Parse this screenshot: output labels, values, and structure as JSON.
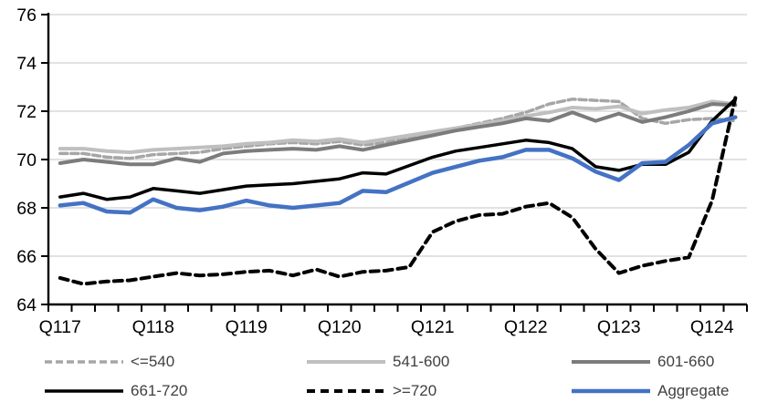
{
  "chart_data": {
    "type": "line",
    "title": "",
    "xlabel": "",
    "ylabel": "",
    "ylim": [
      64,
      76
    ],
    "yticks": [
      64,
      66,
      68,
      70,
      72,
      74,
      76
    ],
    "n_points": 30,
    "x_tick_labels": [
      "Q117",
      "Q118",
      "Q119",
      "Q120",
      "Q121",
      "Q122",
      "Q123",
      "Q124"
    ],
    "x_tick_positions": [
      0,
      4,
      8,
      12,
      16,
      20,
      24,
      28
    ],
    "grid": "horizontal",
    "legend_position": "bottom",
    "series": [
      {
        "name": "<=540",
        "color": "#A6A6A6",
        "dash": "8 4",
        "width": 3.5,
        "values": [
          70.25,
          70.25,
          70.1,
          70.05,
          70.2,
          70.25,
          70.3,
          70.45,
          70.55,
          70.65,
          70.7,
          70.65,
          70.75,
          70.6,
          70.7,
          70.9,
          71.1,
          71.3,
          71.5,
          71.7,
          71.95,
          72.3,
          72.5,
          72.45,
          72.4,
          71.7,
          71.5,
          71.65,
          71.7,
          71.6
        ]
      },
      {
        "name": "541-600",
        "color": "#BFBFBF",
        "dash": null,
        "width": 4,
        "values": [
          70.45,
          70.45,
          70.35,
          70.3,
          70.4,
          70.45,
          70.5,
          70.55,
          70.65,
          70.7,
          70.8,
          70.75,
          70.85,
          70.7,
          70.85,
          71.0,
          71.15,
          71.3,
          71.45,
          71.6,
          71.8,
          71.95,
          72.15,
          72.1,
          72.2,
          71.9,
          72.05,
          72.15,
          72.4,
          72.3
        ]
      },
      {
        "name": "601-660",
        "color": "#7C7C7C",
        "dash": null,
        "width": 4,
        "values": [
          69.85,
          70.0,
          69.9,
          69.8,
          69.8,
          70.05,
          69.9,
          70.25,
          70.35,
          70.4,
          70.45,
          70.4,
          70.55,
          70.4,
          70.6,
          70.8,
          71.0,
          71.2,
          71.35,
          71.5,
          71.7,
          71.6,
          71.95,
          71.6,
          71.9,
          71.55,
          71.75,
          72.0,
          72.3,
          72.25
        ]
      },
      {
        "name": "661-720",
        "color": "#000000",
        "dash": null,
        "width": 3.5,
        "values": [
          68.45,
          68.6,
          68.35,
          68.45,
          68.8,
          68.7,
          68.6,
          68.75,
          68.9,
          68.95,
          69.0,
          69.1,
          69.2,
          69.45,
          69.4,
          69.75,
          70.1,
          70.35,
          70.5,
          70.65,
          70.8,
          70.7,
          70.45,
          69.7,
          69.55,
          69.8,
          69.8,
          70.3,
          71.6,
          72.5
        ]
      },
      {
        "name": ">=720",
        "color": "#000000",
        "dash": "9 6",
        "width": 4,
        "values": [
          65.1,
          64.85,
          64.95,
          65.0,
          65.15,
          65.3,
          65.2,
          65.25,
          65.35,
          65.4,
          65.2,
          65.45,
          65.15,
          65.35,
          65.4,
          65.55,
          67.0,
          67.45,
          67.7,
          67.75,
          68.05,
          68.2,
          67.6,
          66.3,
          65.3,
          65.6,
          65.8,
          65.95,
          68.3,
          72.55
        ]
      },
      {
        "name": "Aggregate",
        "color": "#4472C4",
        "dash": null,
        "width": 4.5,
        "values": [
          68.1,
          68.2,
          67.85,
          67.8,
          68.35,
          68.0,
          67.9,
          68.05,
          68.3,
          68.1,
          68.0,
          68.1,
          68.2,
          68.7,
          68.65,
          69.05,
          69.45,
          69.7,
          69.95,
          70.1,
          70.4,
          70.4,
          70.05,
          69.5,
          69.15,
          69.85,
          69.9,
          70.6,
          71.5,
          71.75
        ]
      }
    ],
    "colors": {
      "gridline": "#D9D9D9",
      "axis": "#000000",
      "tick_label": "#000000",
      "background": "#FFFFFF"
    }
  },
  "legend": {
    "labels": [
      "<=540",
      "541-600",
      "601-660",
      "661-720",
      ">=720",
      "Aggregate"
    ]
  }
}
